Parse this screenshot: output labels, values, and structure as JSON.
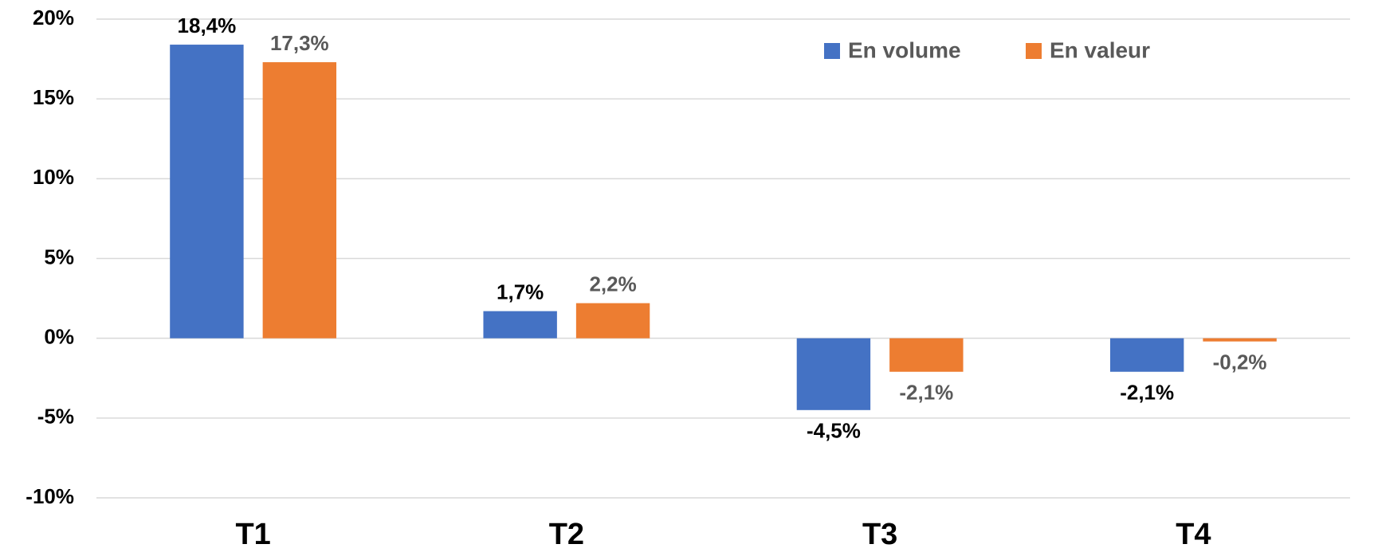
{
  "chart_data": {
    "type": "bar",
    "categories": [
      "T1",
      "T2",
      "T3",
      "T4"
    ],
    "series": [
      {
        "name": "En volume",
        "color": "#4472c4",
        "values": [
          18.4,
          1.7,
          -4.5,
          -2.1
        ],
        "value_labels": [
          "18,4%",
          "1,7%",
          "-4,5%",
          "-2,1%"
        ]
      },
      {
        "name": "En valeur",
        "color": "#ed7d31",
        "values": [
          17.3,
          2.2,
          -2.1,
          -0.2
        ],
        "value_labels": [
          "17,3%",
          "2,2%",
          "-2,1%",
          "-0,2%"
        ]
      }
    ],
    "ylim": [
      -10,
      20
    ],
    "yticks": [
      {
        "value": -10,
        "label": "-10%"
      },
      {
        "value": -5,
        "label": "-5%"
      },
      {
        "value": 0,
        "label": "0%"
      },
      {
        "value": 5,
        "label": "5%"
      },
      {
        "value": 10,
        "label": "10%"
      },
      {
        "value": 15,
        "label": "15%"
      },
      {
        "value": 20,
        "label": "20%"
      }
    ],
    "grid": true,
    "legend": "top-right"
  }
}
